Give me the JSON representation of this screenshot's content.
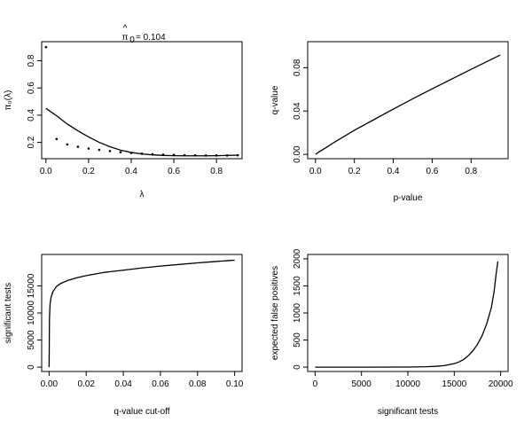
{
  "chart_data": [
    {
      "id": "p1",
      "type": "scatter+line",
      "title_value": "= 0.104",
      "xlabel": "λ",
      "ylabel": "π₀(λ)",
      "xlim": [
        -0.02,
        0.92
      ],
      "ylim": [
        0.08,
        0.94
      ],
      "xticks": [
        0.0,
        0.2,
        0.4,
        0.6,
        0.8
      ],
      "xtick_labels": [
        "0.0",
        "0.2",
        "0.4",
        "0.6",
        "0.8"
      ],
      "yticks": [
        0.2,
        0.4,
        0.6,
        0.8
      ],
      "ytick_labels": [
        "0.2",
        "0.4",
        "0.6",
        "0.8"
      ],
      "points": [
        [
          0.0,
          0.9
        ],
        [
          0.05,
          0.225
        ],
        [
          0.1,
          0.185
        ],
        [
          0.15,
          0.168
        ],
        [
          0.2,
          0.155
        ],
        [
          0.25,
          0.145
        ],
        [
          0.3,
          0.136
        ],
        [
          0.35,
          0.128
        ],
        [
          0.4,
          0.122
        ],
        [
          0.45,
          0.117
        ],
        [
          0.5,
          0.113
        ],
        [
          0.55,
          0.11
        ],
        [
          0.6,
          0.108
        ],
        [
          0.65,
          0.106
        ],
        [
          0.7,
          0.105
        ],
        [
          0.75,
          0.104
        ],
        [
          0.8,
          0.104
        ],
        [
          0.85,
          0.104
        ],
        [
          0.9,
          0.105
        ]
      ],
      "curve": [
        [
          0.0,
          0.45
        ],
        [
          0.05,
          0.395
        ],
        [
          0.1,
          0.335
        ],
        [
          0.15,
          0.285
        ],
        [
          0.2,
          0.24
        ],
        [
          0.25,
          0.2
        ],
        [
          0.3,
          0.168
        ],
        [
          0.35,
          0.143
        ],
        [
          0.4,
          0.126
        ],
        [
          0.45,
          0.115
        ],
        [
          0.5,
          0.108
        ],
        [
          0.55,
          0.104
        ],
        [
          0.6,
          0.102
        ],
        [
          0.65,
          0.101
        ],
        [
          0.7,
          0.101
        ],
        [
          0.75,
          0.101
        ],
        [
          0.8,
          0.102
        ],
        [
          0.85,
          0.104
        ],
        [
          0.9,
          0.106
        ]
      ]
    },
    {
      "id": "p2",
      "type": "line",
      "xlabel": "p-value",
      "ylabel": "q-value",
      "xlim": [
        -0.04,
        0.99
      ],
      "ylim": [
        -0.004,
        0.104
      ],
      "xticks": [
        0.0,
        0.2,
        0.4,
        0.6,
        0.8
      ],
      "xtick_labels": [
        "0.0",
        "0.2",
        "0.4",
        "0.6",
        "0.8"
      ],
      "yticks": [
        0.0,
        0.04,
        0.08
      ],
      "ytick_labels": [
        "0.00",
        "0.04",
        "0.08"
      ],
      "curve": [
        [
          0.0,
          0.0
        ],
        [
          0.02,
          0.0025
        ],
        [
          0.05,
          0.0058
        ],
        [
          0.1,
          0.0115
        ],
        [
          0.15,
          0.0168
        ],
        [
          0.2,
          0.0222
        ],
        [
          0.3,
          0.032
        ],
        [
          0.4,
          0.0418
        ],
        [
          0.5,
          0.0513
        ],
        [
          0.6,
          0.0605
        ],
        [
          0.7,
          0.0695
        ],
        [
          0.8,
          0.0785
        ],
        [
          0.9,
          0.0873
        ],
        [
          0.95,
          0.0917
        ]
      ]
    },
    {
      "id": "p3",
      "type": "line",
      "xlabel": "q-value cut-off",
      "ylabel": "significant tests",
      "xlim": [
        -0.004,
        0.104
      ],
      "ylim": [
        -800,
        20800
      ],
      "xticks": [
        0.0,
        0.02,
        0.04,
        0.06,
        0.08,
        0.1
      ],
      "xtick_labels": [
        "0.00",
        "0.02",
        "0.04",
        "0.06",
        "0.08",
        "0.10"
      ],
      "yticks": [
        0,
        5000,
        10000,
        15000
      ],
      "ytick_labels": [
        "0",
        "5000",
        "10000",
        "15000"
      ],
      "curve": [
        [
          0.0,
          0
        ],
        [
          0.0002,
          9000
        ],
        [
          0.0005,
          11500
        ],
        [
          0.001,
          12800
        ],
        [
          0.002,
          13900
        ],
        [
          0.004,
          14900
        ],
        [
          0.006,
          15400
        ],
        [
          0.01,
          16000
        ],
        [
          0.015,
          16500
        ],
        [
          0.02,
          16900
        ],
        [
          0.03,
          17500
        ],
        [
          0.04,
          17900
        ],
        [
          0.05,
          18300
        ],
        [
          0.06,
          18650
        ],
        [
          0.07,
          18950
        ],
        [
          0.08,
          19250
        ],
        [
          0.09,
          19500
        ],
        [
          0.1,
          19750
        ]
      ]
    },
    {
      "id": "p4",
      "type": "line",
      "xlabel": "significant tests",
      "ylabel": "expected false positives",
      "xlim": [
        -800,
        20800
      ],
      "ylim": [
        -80,
        2080
      ],
      "xticks": [
        0,
        5000,
        10000,
        15000,
        20000
      ],
      "xtick_labels": [
        "0",
        "5000",
        "10000",
        "15000",
        "20000"
      ],
      "yticks": [
        0,
        500,
        1000,
        1500,
        2000
      ],
      "ytick_labels": [
        "0",
        "500",
        "1000",
        "1500",
        "2000"
      ],
      "curve": [
        [
          0,
          0
        ],
        [
          5000,
          0
        ],
        [
          10000,
          2
        ],
        [
          12000,
          8
        ],
        [
          13000,
          15
        ],
        [
          14000,
          30
        ],
        [
          15000,
          65
        ],
        [
          15500,
          95
        ],
        [
          16000,
          140
        ],
        [
          16500,
          210
        ],
        [
          17000,
          300
        ],
        [
          17500,
          420
        ],
        [
          18000,
          580
        ],
        [
          18500,
          800
        ],
        [
          19000,
          1100
        ],
        [
          19300,
          1400
        ],
        [
          19500,
          1700
        ],
        [
          19700,
          1950
        ]
      ]
    }
  ]
}
